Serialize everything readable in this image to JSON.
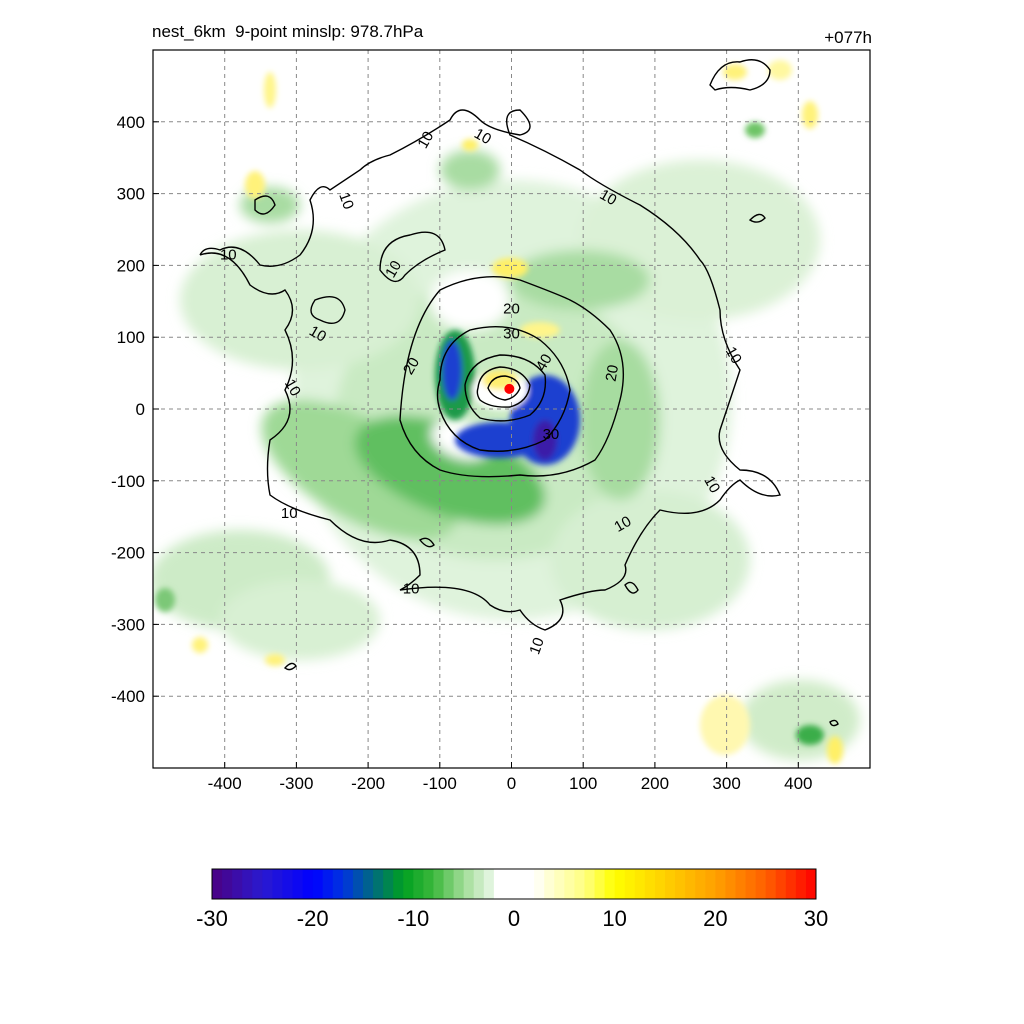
{
  "chart_data": {
    "type": "heatmap",
    "title_left": "nest_6km  9-point minslp: 978.7hPa",
    "title_right": "+077h",
    "xlim": [
      -500,
      500
    ],
    "ylim": [
      -500,
      500
    ],
    "xticks": [
      -400,
      -300,
      -200,
      -100,
      0,
      100,
      200,
      300,
      400
    ],
    "yticks": [
      -400,
      -300,
      -200,
      -100,
      0,
      100,
      200,
      300,
      400
    ],
    "grid": true,
    "grid_style": "dashed",
    "colorbar": {
      "orientation": "horizontal",
      "range": [
        -30,
        30
      ],
      "ticks": [
        -30,
        -20,
        -10,
        0,
        10,
        20,
        30
      ],
      "colors": [
        "#4b0082",
        "#0000ff",
        "#00a000",
        "#ffffff",
        "#ffff00",
        "#ff0000"
      ]
    },
    "center_marker": {
      "x": -3,
      "y": 28,
      "color": "#ff0000"
    },
    "contour_levels": [
      10,
      20,
      30,
      40
    ],
    "contour_labels": [
      {
        "text": "10",
        "x": -120,
        "y": 375,
        "rot": -60
      },
      {
        "text": "10",
        "x": -40,
        "y": 380,
        "rot": 30
      },
      {
        "text": "10",
        "x": -230,
        "y": 290,
        "rot": 70
      },
      {
        "text": "10",
        "x": -395,
        "y": 215,
        "rot": 0
      },
      {
        "text": "10",
        "x": -165,
        "y": 195,
        "rot": -60
      },
      {
        "text": "10",
        "x": -270,
        "y": 105,
        "rot": 30
      },
      {
        "text": "10",
        "x": -305,
        "y": 30,
        "rot": 60
      },
      {
        "text": "10",
        "x": -310,
        "y": -145,
        "rot": 0
      },
      {
        "text": "10",
        "x": -140,
        "y": -250,
        "rot": 0
      },
      {
        "text": "10",
        "x": 135,
        "y": 295,
        "rot": 30
      },
      {
        "text": "10",
        "x": 310,
        "y": 75,
        "rot": 60
      },
      {
        "text": "10",
        "x": 280,
        "y": -105,
        "rot": 60
      },
      {
        "text": "10",
        "x": 155,
        "y": -160,
        "rot": -30
      },
      {
        "text": "10",
        "x": 35,
        "y": -330,
        "rot": -70
      },
      {
        "text": "20",
        "x": -140,
        "y": 60,
        "rot": -60
      },
      {
        "text": "20",
        "x": 0,
        "y": 140,
        "rot": 0
      },
      {
        "text": "30",
        "x": 0,
        "y": 105,
        "rot": 0
      },
      {
        "text": "20",
        "x": 140,
        "y": 50,
        "rot": -80
      },
      {
        "text": "40",
        "x": 45,
        "y": 65,
        "rot": -60
      },
      {
        "text": "30",
        "x": 55,
        "y": -35,
        "rot": 0
      }
    ]
  }
}
